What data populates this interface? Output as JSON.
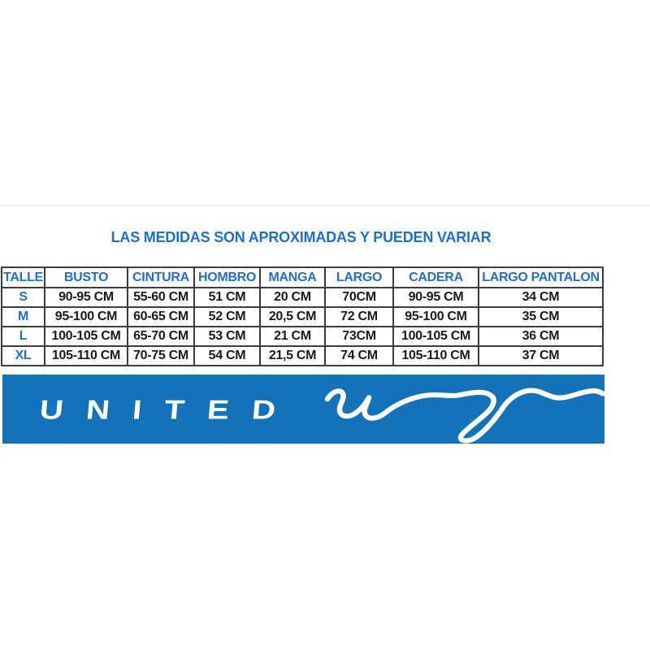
{
  "title": "LAS MEDIDAS SON APROXIMADAS Y PUEDEN VARIAR",
  "size_table": {
    "columns": [
      "TALLE",
      "BUSTO",
      "CINTURA",
      "HOMBRO",
      "MANGA",
      "LARGO",
      "CADERA",
      "LARGO PANTALON"
    ],
    "rows": [
      [
        "S",
        "90-95 CM",
        "55-60 CM",
        "51 CM",
        "20 CM",
        "70CM",
        "90-95 CM",
        "34 CM"
      ],
      [
        "M",
        "95-100 CM",
        "60-65 CM",
        "52 CM",
        "20,5 CM",
        "72 CM",
        "95-100 CM",
        "35 CM"
      ],
      [
        "L",
        "100-105 CM",
        "65-70 CM",
        "53 CM",
        "21 CM",
        "73CM",
        "100-105 CM",
        "36 CM"
      ],
      [
        "XL",
        "105-110 CM",
        "70-75 CM",
        "54 CM",
        "21,5 CM",
        "74 CM",
        "105-110 CM",
        "37 CM"
      ]
    ]
  },
  "brand": {
    "name": "UNITED",
    "script": "uy",
    "banner_color": "#1473b8"
  },
  "colors": {
    "accent_blue": "#1e6fc5",
    "cell_text": "#1a1a1a",
    "table_border": "#3d3d3d",
    "logo_text_color": "#ffffff"
  }
}
